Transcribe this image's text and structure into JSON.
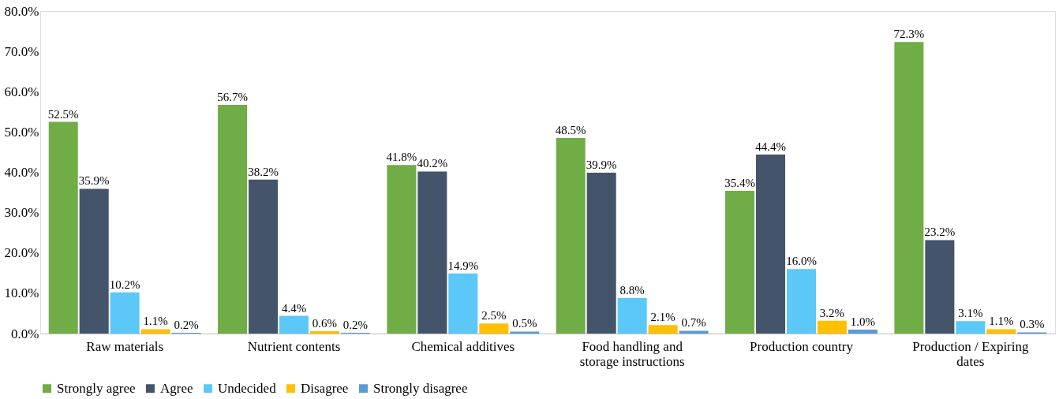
{
  "chart_data": {
    "type": "bar",
    "categories": [
      "Raw materials",
      "Nutrient contents",
      "Chemical additives",
      "Food handling and storage instructions",
      "Production country",
      "Production / Expiring dates"
    ],
    "series": [
      {
        "name": "Strongly agree",
        "color": "#70ad47",
        "values": [
          52.5,
          56.7,
          41.8,
          48.5,
          35.4,
          72.3
        ],
        "value_labels": [
          "52.5%",
          "56.7%",
          "41.8%",
          "48.5%",
          "35.4%",
          "72.3%"
        ]
      },
      {
        "name": "Agree",
        "color": "#44546a",
        "values": [
          35.9,
          38.2,
          40.2,
          39.9,
          44.4,
          23.2
        ],
        "value_labels": [
          "35.9%",
          "38.2%",
          "40.2%",
          "39.9%",
          "44.4%",
          "23.2%"
        ]
      },
      {
        "name": "Undecided",
        "color": "#5bc8f7",
        "values": [
          10.2,
          4.4,
          14.9,
          8.8,
          16.0,
          3.1
        ],
        "value_labels": [
          "10.2%",
          "4.4%",
          "14.9%",
          "8.8%",
          "16.0%",
          "3.1%"
        ]
      },
      {
        "name": "Disagree",
        "color": "#ffc000",
        "values": [
          1.1,
          0.6,
          2.5,
          2.1,
          3.2,
          1.1
        ],
        "value_labels": [
          "1.1%",
          "0.6%",
          "2.5%",
          "2.1%",
          "3.2%",
          "1.1%"
        ]
      },
      {
        "name": "Strongly disagree",
        "color": "#5b9bd5",
        "values": [
          0.2,
          0.2,
          0.5,
          0.7,
          1.0,
          0.3
        ],
        "value_labels": [
          "0.2%",
          "0.2%",
          "0.5%",
          "0.7%",
          "1.0%",
          "0.3%"
        ]
      }
    ],
    "ylim": [
      0,
      80
    ],
    "yticks": [
      {
        "value": 0,
        "label": "0.0%"
      },
      {
        "value": 10,
        "label": "10.0%"
      },
      {
        "value": 20,
        "label": "20.0%"
      },
      {
        "value": 30,
        "label": "30.0%"
      },
      {
        "value": 40,
        "label": "40.0%"
      },
      {
        "value": 50,
        "label": "50.0%"
      },
      {
        "value": 60,
        "label": "60.0%"
      },
      {
        "value": 70,
        "label": "70.0%"
      },
      {
        "value": 80,
        "label": "80.0%"
      }
    ],
    "grid": false,
    "legend": "bottom"
  }
}
